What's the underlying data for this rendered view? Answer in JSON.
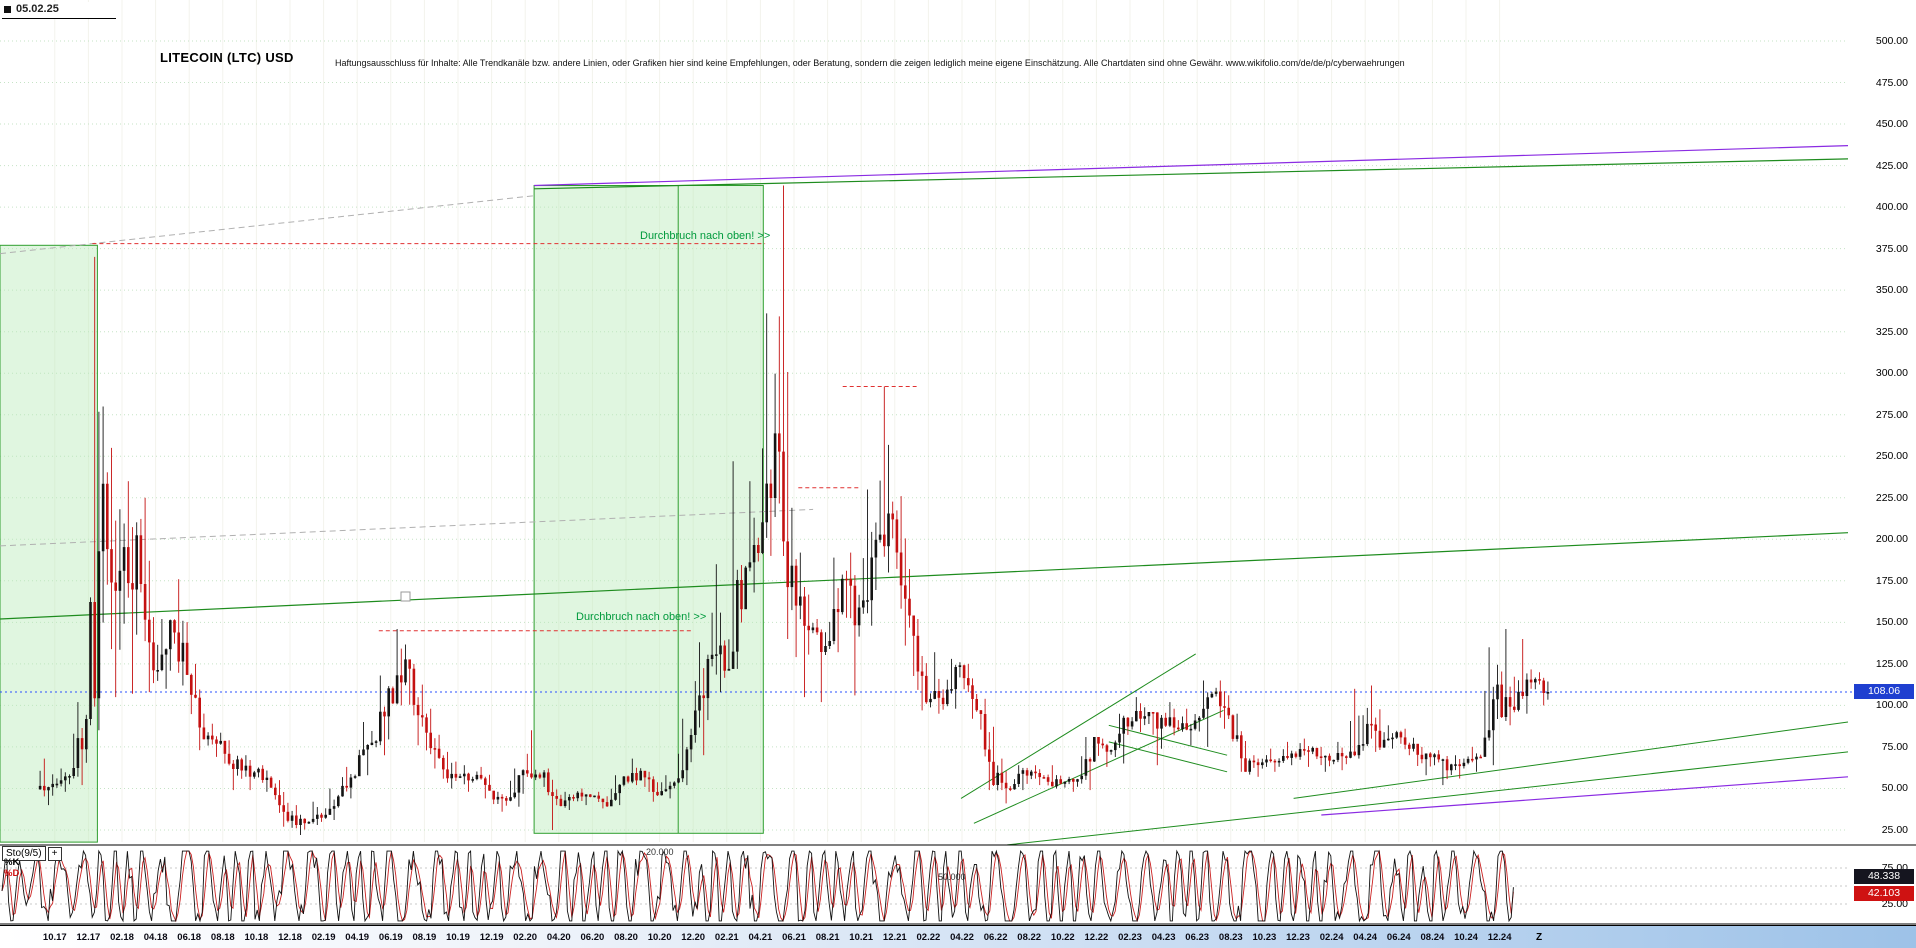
{
  "header": {
    "date": "05.02.25",
    "title": "LITECOIN (LTC) USD",
    "disclaimer": "Haftungsausschluss für Inhalte: Alle Trendkanäle bzw. andere Linien, oder Grafiken hier sind keine Empfehlungen, oder Beratung, sondern die zeigen lediglich meine eigene Einschätzung. Alle Chartdaten sind ohne Gewähr.  www.wikifolio.com/de/de/p/cyberwaehrungen"
  },
  "price_axis": {
    "ticks": [
      "500.00",
      "475.00",
      "450.00",
      "425.00",
      "400.00",
      "375.00",
      "350.00",
      "325.00",
      "300.00",
      "275.00",
      "250.00",
      "225.00",
      "200.00",
      "175.00",
      "150.00",
      "125.00",
      "100.00",
      "75.00",
      "50.00",
      "25.00"
    ],
    "current": "108.06"
  },
  "x_axis": {
    "labels": [
      "10.17",
      "12.17",
      "02.18",
      "04.18",
      "06.18",
      "08.18",
      "10.18",
      "12.18",
      "02.19",
      "04.19",
      "06.19",
      "08.19",
      "10.19",
      "12.19",
      "02.20",
      "04.20",
      "06.20",
      "08.20",
      "10.20",
      "12.20",
      "02.21",
      "04.21",
      "06.21",
      "08.21",
      "10.21",
      "12.21",
      "02.22",
      "04.22",
      "06.22",
      "08.22",
      "10.22",
      "12.22",
      "02.23",
      "04.23",
      "06.23",
      "08.23",
      "10.23",
      "12.23",
      "02.24",
      "04.24",
      "06.24",
      "08.24",
      "10.24",
      "12.24"
    ],
    "z_label": "Z"
  },
  "annotations": [
    {
      "text": "Durchbruch nach oben! >>"
    },
    {
      "text": "Durchbruch nach oben! >>"
    }
  ],
  "indicator": {
    "name": "Sto(9/5)",
    "add_button": "+",
    "k_label": "%K",
    "d_label": "%D",
    "upper_level": "75.00",
    "lower_level": "25.00",
    "k_value": "48.338",
    "d_value": "42.103",
    "aux_labels": [
      "20.000",
      "50.000"
    ]
  },
  "chart_data": {
    "type": "candlestick",
    "symbol": "LITECOIN (LTC) USD",
    "time_start": "2017-09",
    "time_end": "2025-02",
    "interval": "monthly",
    "ylim": [
      18,
      524
    ],
    "last_price": 108.06,
    "closes": [
      55,
      55,
      88,
      230,
      160,
      205,
      117,
      150,
      118,
      81,
      77,
      62,
      61,
      52,
      32,
      30,
      33,
      45,
      61,
      74,
      106,
      121,
      94,
      64,
      56,
      58,
      47,
      41,
      58,
      59,
      39,
      46,
      46,
      41,
      56,
      58,
      46,
      55,
      75,
      124,
      130,
      164,
      197,
      265,
      187,
      144,
      141,
      174,
      152,
      192,
      210,
      146,
      109,
      105,
      124,
      98,
      63,
      53,
      60,
      55,
      53,
      55,
      76,
      70,
      93,
      95,
      90,
      88,
      91,
      107,
      92,
      65,
      66,
      69,
      70,
      73,
      68,
      70,
      84,
      80,
      82,
      74,
      68,
      64,
      65,
      70,
      100,
      105,
      115,
      108
    ],
    "highs": [
      68,
      62,
      102,
      370,
      255,
      235,
      225,
      152,
      176,
      125,
      89,
      79,
      70,
      64,
      55,
      40,
      42,
      50,
      63,
      90,
      118,
      146,
      125,
      98,
      72,
      64,
      63,
      48,
      62,
      85,
      62,
      48,
      50,
      48,
      58,
      68,
      60,
      58,
      92,
      138,
      185,
      247,
      235,
      336,
      413,
      192,
      152,
      189,
      192,
      230,
      292,
      226,
      152,
      132,
      128,
      125,
      104,
      68,
      64,
      64,
      64,
      57,
      81,
      80,
      95,
      105,
      96,
      102,
      98,
      115,
      115,
      95,
      70,
      74,
      78,
      80,
      75,
      78,
      110,
      112,
      88,
      86,
      75,
      73,
      70,
      75,
      135,
      146,
      140,
      120
    ],
    "lows": [
      40,
      48,
      52,
      85,
      105,
      107,
      108,
      110,
      112,
      73,
      69,
      49,
      49,
      48,
      27,
      22,
      28,
      31,
      44,
      58,
      70,
      100,
      76,
      62,
      50,
      48,
      44,
      36,
      39,
      55,
      25,
      37,
      40,
      38,
      40,
      52,
      42,
      44,
      52,
      70,
      108,
      122,
      168,
      190,
      140,
      105,
      102,
      132,
      106,
      148,
      180,
      136,
      97,
      95,
      98,
      92,
      49,
      41,
      49,
      52,
      50,
      48,
      49,
      63,
      65,
      84,
      64,
      82,
      76,
      75,
      86,
      60,
      57,
      60,
      64,
      63,
      60,
      61,
      68,
      72,
      74,
      70,
      58,
      52,
      56,
      60,
      64,
      88,
      95,
      100
    ],
    "stochastic": {
      "params": "9/5",
      "k_last": 48.338,
      "d_last": 42.103,
      "levels": [
        75,
        50,
        25
      ]
    },
    "palette": {
      "candle_up": "#141414",
      "candle_down": "#c41111",
      "grid": "#c6e3c6",
      "vgrid": "#f3f3ec",
      "box_fill": "rgba(186,235,186,0.45)",
      "box_stroke": "#2f9e2f",
      "k_line": "#111111",
      "d_line": "#cc2222"
    },
    "overlays": {
      "green_boxes": [
        {
          "x0": 0.0,
          "x1": 0.0527,
          "p0": 17.7,
          "p1": 377
        },
        {
          "x0": 0.289,
          "x1": 0.413,
          "p0": 23,
          "p1": 413,
          "divider": 0.367
        }
      ],
      "trend_lines": [
        {
          "x0": 0.0,
          "p0": 152,
          "x1": 1.0,
          "p1": 204,
          "color": "#1e8c1e",
          "w": 1.2
        },
        {
          "x0": 0.289,
          "p0": 411,
          "x1": 1.0,
          "p1": 429,
          "color": "#1e8c1e",
          "w": 1.2
        },
        {
          "x0": 0.289,
          "p0": 413,
          "x1": 1.0,
          "p1": 437,
          "color": "#8a2be2",
          "w": 1.2
        },
        {
          "x0": 0.0,
          "p0": 372,
          "x1": 0.29,
          "p1": 407,
          "color": "#b0b0b0",
          "dash": "6,4",
          "w": 1
        },
        {
          "x0": 0.0,
          "p0": 196,
          "x1": 0.44,
          "p1": 218,
          "color": "#b0b0b0",
          "dash": "6,4",
          "w": 1
        },
        {
          "x0": 0.52,
          "p0": 44,
          "x1": 0.647,
          "p1": 131,
          "color": "#1e8c1e",
          "w": 1
        },
        {
          "x0": 0.527,
          "p0": 29,
          "x1": 0.662,
          "p1": 97,
          "color": "#1e8c1e",
          "w": 1
        },
        {
          "x0": 0.545,
          "p0": 16,
          "x1": 1.0,
          "p1": 72,
          "color": "#1e8c1e",
          "w": 1
        },
        {
          "x0": 0.7,
          "p0": 44,
          "x1": 1.0,
          "p1": 90,
          "color": "#1e8c1e",
          "w": 1
        },
        {
          "x0": 0.715,
          "p0": 34,
          "x1": 1.0,
          "p1": 57,
          "color": "#8a2be2",
          "w": 1.2
        },
        {
          "x0": 0.6,
          "p0": 78,
          "x1": 0.664,
          "p1": 60,
          "color": "#1e8c1e",
          "w": 1
        },
        {
          "x0": 0.6,
          "p0": 88,
          "x1": 0.664,
          "p1": 70,
          "color": "#1e8c1e",
          "w": 1
        }
      ],
      "resistance_lines": [
        {
          "x0": 0.05,
          "x1": 0.414,
          "p": 378,
          "color": "#e03131"
        },
        {
          "x0": 0.205,
          "x1": 0.374,
          "p": 145,
          "color": "#e03131"
        },
        {
          "x0": 0.432,
          "x1": 0.465,
          "p": 231,
          "color": "#e03131"
        },
        {
          "x0": 0.456,
          "x1": 0.496,
          "p": 292,
          "color": "#e03131"
        }
      ],
      "current_line": {
        "p": 108.06,
        "color": "#2b50ff"
      }
    }
  }
}
